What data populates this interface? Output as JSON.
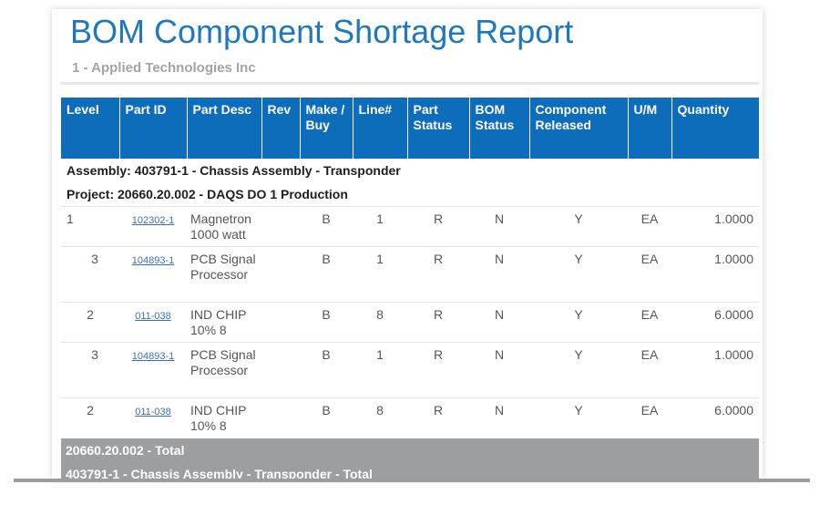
{
  "report": {
    "title": "BOM Component Shortage Report",
    "company": "1 - Applied Technologies Inc"
  },
  "columns": [
    "Level",
    "Part ID",
    "Part Desc",
    "Rev",
    "Make / Buy",
    "Line#",
    "Part Status",
    "BOM Status",
    "Component Released",
    "U/M",
    "Quantity"
  ],
  "assembly_label": "Assembly:  403791-1 - Chassis Assembly - Transponder",
  "project_label": "Project:  20660.20.002 - DAQS DO 1 Production",
  "rows": [
    {
      "level": "1",
      "part_id": "102302-1",
      "part_desc": "Magnetron 1000 watt",
      "rev": "",
      "make_buy": "B",
      "line": "1",
      "part_status": "R",
      "bom_status": "N",
      "released": "Y",
      "um": "EA",
      "quantity": "1.0000"
    },
    {
      "level": "3",
      "part_id": "104893-1",
      "part_desc": "PCB Signal Processor",
      "rev": "",
      "make_buy": "B",
      "line": "1",
      "part_status": "R",
      "bom_status": "N",
      "released": "Y",
      "um": "EA",
      "quantity": "1.0000"
    },
    {
      "level": "2",
      "part_id": "011-038",
      "part_desc": "IND CHIP 10% 8",
      "rev": "",
      "make_buy": "B",
      "line": "8",
      "part_status": "R",
      "bom_status": "N",
      "released": "Y",
      "um": "EA",
      "quantity": "6.0000"
    },
    {
      "level": "3",
      "part_id": "104893-1",
      "part_desc": "PCB Signal Processor",
      "rev": "",
      "make_buy": "B",
      "line": "1",
      "part_status": "R",
      "bom_status": "N",
      "released": "Y",
      "um": "EA",
      "quantity": "1.0000"
    },
    {
      "level": "2",
      "part_id": "011-038",
      "part_desc": "IND CHIP 10% 8",
      "rev": "",
      "make_buy": "B",
      "line": "8",
      "part_status": "R",
      "bom_status": "N",
      "released": "Y",
      "um": "EA",
      "quantity": "6.0000"
    }
  ],
  "project_total": "20660.20.002 - Total",
  "assembly_total": "403791-1 - Chassis Assembly - Transponder - Total"
}
